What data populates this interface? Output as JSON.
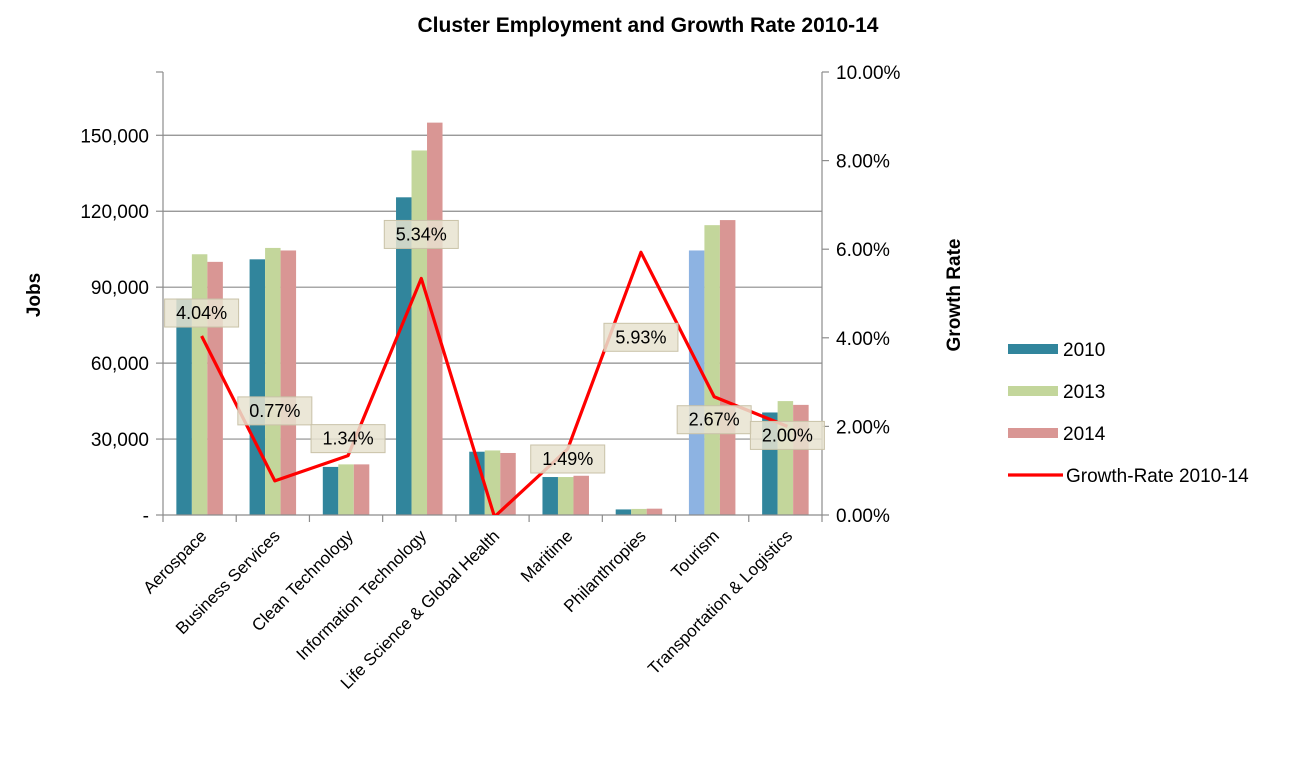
{
  "chart_data": {
    "type": "bar",
    "title": "Cluster Employment and Growth Rate 2010-14",
    "ylabel": "Jobs",
    "y2label": "Growth Rate",
    "ylim": [
      0,
      175000
    ],
    "y2lim": [
      0,
      0.1
    ],
    "yticks": [
      "-",
      "30,000",
      "60,000",
      "90,000",
      "120,000",
      "150,000"
    ],
    "y2ticks": [
      "0.00%",
      "2.00%",
      "4.00%",
      "6.00%",
      "8.00%",
      "10.00%"
    ],
    "categories": [
      "Aerospace",
      "Business Services",
      "Clean Technology",
      "Information Technology",
      "Life Science & Global Health",
      "Maritime",
      "Philanthropies",
      "Tourism",
      "Transportation & Logistics"
    ],
    "series": [
      {
        "name": "2010",
        "color": "#31859c",
        "values": [
          85500,
          101000,
          19000,
          125500,
          25000,
          15000,
          2200,
          104500,
          40500
        ]
      },
      {
        "name": "2013",
        "color": "#c3d69b",
        "values": [
          103000,
          105500,
          20000,
          144000,
          25500,
          15000,
          2400,
          114500,
          45000
        ]
      },
      {
        "name": "2014",
        "color": "#d99694",
        "values": [
          100000,
          104500,
          20000,
          155000,
          24500,
          15500,
          2500,
          116500,
          43500
        ]
      }
    ],
    "line_series": {
      "name": "Growth-Rate 2010-14",
      "color": "#ff0000",
      "values": [
        0.0404,
        0.0077,
        0.0134,
        0.0534,
        -0.0004,
        0.0149,
        0.0593,
        0.0267,
        0.02
      ],
      "labels": [
        "4.04%",
        "0.77%",
        "1.34%",
        "5.34%",
        "",
        "1.49%",
        "5.93%",
        "2.67%",
        "2.00%"
      ]
    },
    "legend": [
      "2010",
      "2013",
      "2014",
      "Growth-Rate 2010-14"
    ],
    "legend_position": "right",
    "grid": true
  }
}
